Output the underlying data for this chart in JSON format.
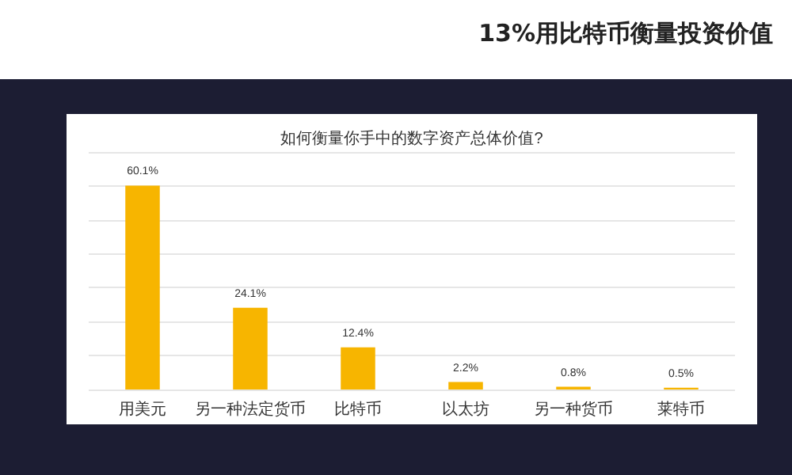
{
  "chart_data": {
    "type": "bar",
    "title": "13%用比特币衡量投资价值",
    "subtitle": "如何衡量你手中的数字资产总体价值?",
    "categories": [
      "用美元",
      "另一种法定货币",
      "比特币",
      "以太坊",
      "另一种货币",
      "莱特币"
    ],
    "values": [
      60.1,
      24.1,
      12.4,
      2.2,
      0.8,
      0.5
    ],
    "color": "#f7b500",
    "value_labels": [
      "60.1%",
      "24.1%",
      "12.4%",
      "2.2%",
      "0.8%",
      "0.5%"
    ],
    "ylim": [
      0,
      70
    ],
    "yticks": [
      {
        "value": 0,
        "label": null
      },
      {
        "value": 10,
        "label": null
      },
      {
        "value": 20,
        "label": null
      },
      {
        "value": 30,
        "label": null
      },
      {
        "value": 40,
        "label": null
      },
      {
        "value": 50,
        "label": null
      },
      {
        "value": 60,
        "label": null
      },
      {
        "value": 70,
        "label": null
      }
    ],
    "tick_labels": "x",
    "grid": "y"
  }
}
